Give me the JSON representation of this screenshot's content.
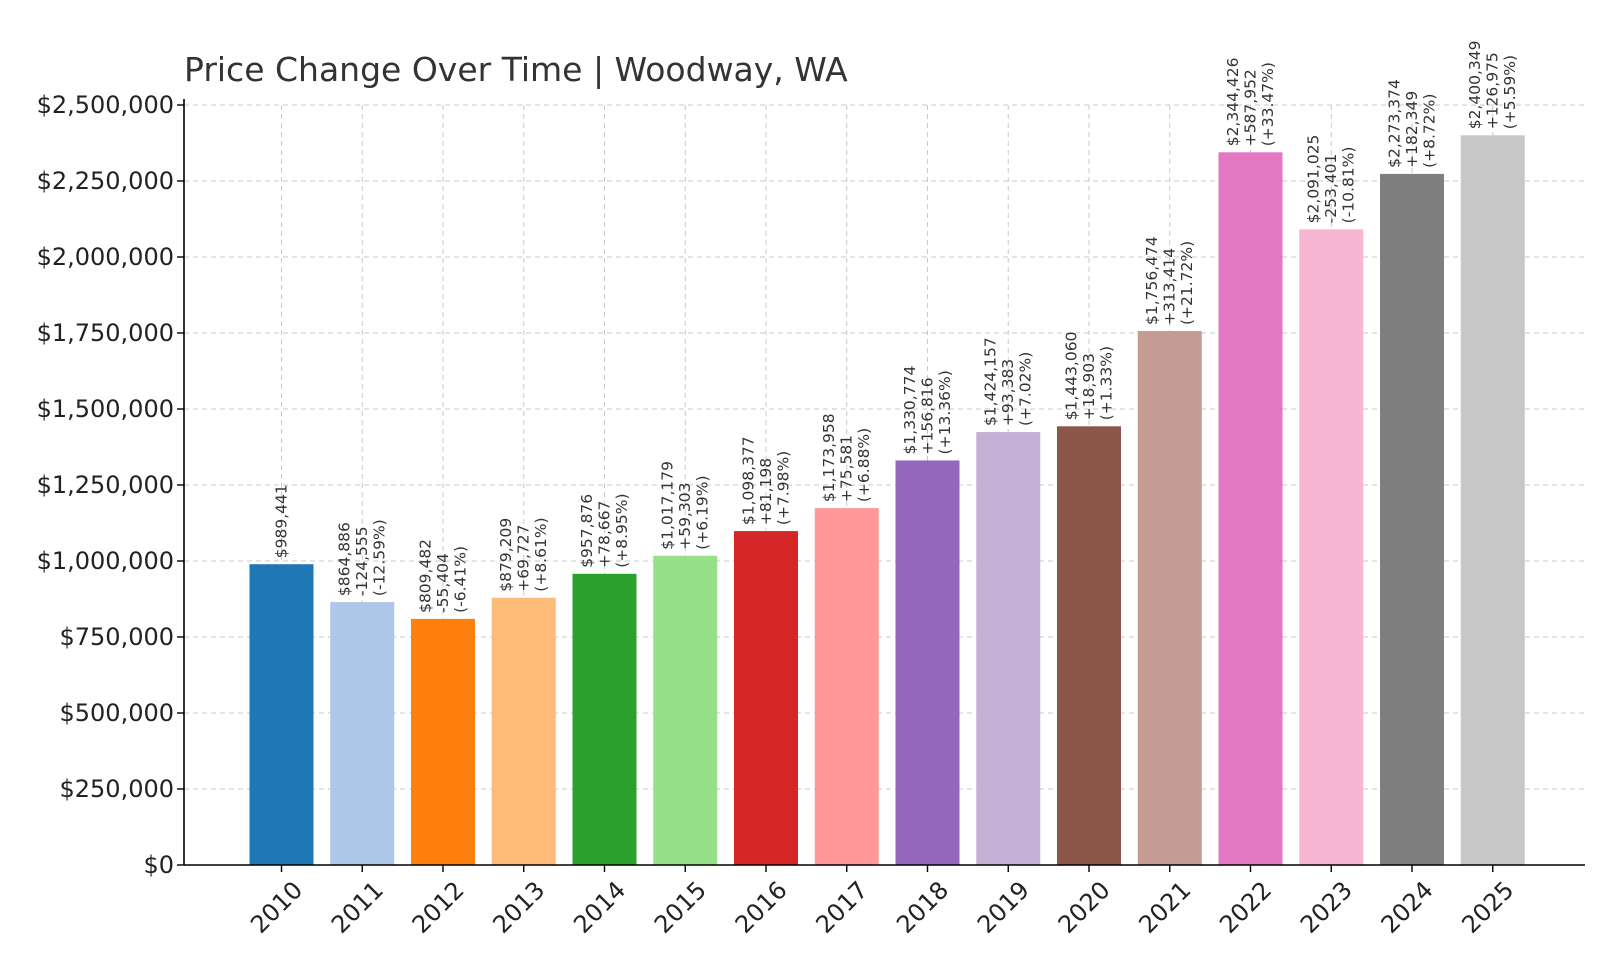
{
  "chart_data": {
    "type": "bar",
    "title": "Price Change Over Time | Woodway, WA",
    "xlabel": "",
    "ylabel": "",
    "ylim": [
      0,
      2500000
    ],
    "yticks": [
      0,
      250000,
      500000,
      750000,
      1000000,
      1250000,
      1500000,
      1750000,
      2000000,
      2250000,
      2500000
    ],
    "ytick_labels": [
      "$0",
      "$250,000",
      "$500,000",
      "$750,000",
      "$1,000,000",
      "$1,250,000",
      "$1,500,000",
      "$1,750,000",
      "$2,000,000",
      "$2,250,000",
      "$2,500,000"
    ],
    "grid": true,
    "legend": "none",
    "categories": [
      "2010",
      "2011",
      "2012",
      "2013",
      "2014",
      "2015",
      "2016",
      "2017",
      "2018",
      "2019",
      "2020",
      "2021",
      "2022",
      "2023",
      "2024",
      "2025"
    ],
    "values": [
      989441,
      864886,
      809482,
      879209,
      957876,
      1017179,
      1098377,
      1173958,
      1330774,
      1424157,
      1443060,
      1756474,
      2344426,
      2091025,
      2273374,
      2400349
    ],
    "colors": [
      "#1f77b4",
      "#aec7e8",
      "#ff7f0e",
      "#ffbb78",
      "#2ca02c",
      "#98df8a",
      "#d62728",
      "#ff9896",
      "#9467bd",
      "#c5b0d5",
      "#8c564b",
      "#c49c94",
      "#e377c2",
      "#f7b6d2",
      "#7f7f7f",
      "#c7c7c7"
    ],
    "data_labels": [
      [
        "$989,441"
      ],
      [
        "$864,886",
        "-124,555",
        "(-12.59%)"
      ],
      [
        "$809,482",
        "-55,404",
        "(-6.41%)"
      ],
      [
        "$879,209",
        "+69,727",
        "(+8.61%)"
      ],
      [
        "$957,876",
        "+78,667",
        "(+8.95%)"
      ],
      [
        "$1,017,179",
        "+59,303",
        "(+6.19%)"
      ],
      [
        "$1,098,377",
        "+81,198",
        "(+7.98%)"
      ],
      [
        "$1,173,958",
        "+75,581",
        "(+6.88%)"
      ],
      [
        "$1,330,774",
        "+156,816",
        "(+13.36%)"
      ],
      [
        "$1,424,157",
        "+93,383",
        "(+7.02%)"
      ],
      [
        "$1,443,060",
        "+18,903",
        "(+1.33%)"
      ],
      [
        "$1,756,474",
        "+313,414",
        "(+21.72%)"
      ],
      [
        "$2,344,426",
        "+587,952",
        "(+33.47%)"
      ],
      [
        "$2,091,025",
        "-253,401",
        "(-10.81%)"
      ],
      [
        "$2,273,374",
        "+182,349",
        "(+8.72%)"
      ],
      [
        "$2,400,349",
        "+126,975",
        "(+5.59%)"
      ]
    ]
  }
}
